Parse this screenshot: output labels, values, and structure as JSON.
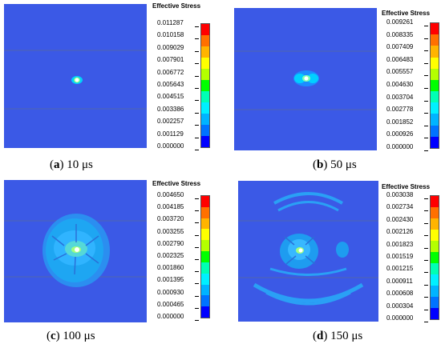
{
  "legend_title": "Effective Stress",
  "colors": [
    "#0000ff",
    "#0073ff",
    "#00b4ff",
    "#00f0ff",
    "#00ffb4",
    "#00ff00",
    "#b4ff00",
    "#ffff00",
    "#ffb400",
    "#ff7000",
    "#ff0000"
  ],
  "panels": [
    {
      "id": "a",
      "letter": "a",
      "time": "10 μs",
      "values": [
        "0.011287",
        "0.010158",
        "0.009029",
        "0.007901",
        "0.006772",
        "0.005643",
        "0.004515",
        "0.003386",
        "0.002257",
        "0.001129",
        "0.000000"
      ]
    },
    {
      "id": "b",
      "letter": "b",
      "time": "50 μs",
      "values": [
        "0.009261",
        "0.008335",
        "0.007409",
        "0.006483",
        "0.005557",
        "0.004630",
        "0.003704",
        "0.002778",
        "0.001852",
        "0.000926",
        "0.000000"
      ]
    },
    {
      "id": "c",
      "letter": "c",
      "time": "100 μs",
      "values": [
        "0.004650",
        "0.004185",
        "0.003720",
        "0.003255",
        "0.002790",
        "0.002325",
        "0.001860",
        "0.001395",
        "0.000930",
        "0.000465",
        "0.000000"
      ]
    },
    {
      "id": "d",
      "letter": "d",
      "time": "150 μs",
      "values": [
        "0.003038",
        "0.002734",
        "0.002430",
        "0.002126",
        "0.001823",
        "0.001519",
        "0.001215",
        "0.000911",
        "0.000608",
        "0.000304",
        "0.000000"
      ]
    }
  ]
}
